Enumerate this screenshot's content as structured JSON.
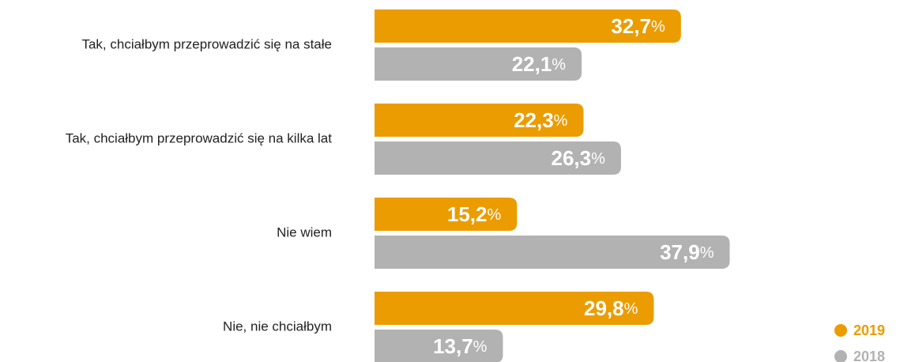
{
  "chart_data": {
    "type": "bar",
    "orientation": "horizontal",
    "categories": [
      "Tak, chciałbym przeprowadzić się na stałe",
      "Tak, chciałbym przeprowadzić się na kilka lat",
      "Nie wiem",
      "Nie, nie chciałbym"
    ],
    "series": [
      {
        "name": "2019",
        "color": "#eb9c00",
        "values": [
          32.7,
          22.3,
          15.2,
          29.8
        ],
        "value_labels": [
          "32,7%",
          "22,3%",
          "15,2%",
          "29,8%"
        ]
      },
      {
        "name": "2018",
        "color": "#b2b2b2",
        "values": [
          22.1,
          26.3,
          37.9,
          13.7
        ],
        "value_labels": [
          "22,1%",
          "26,3%",
          "37,9%",
          "13,7%"
        ]
      }
    ],
    "legend": "bottom-right"
  }
}
